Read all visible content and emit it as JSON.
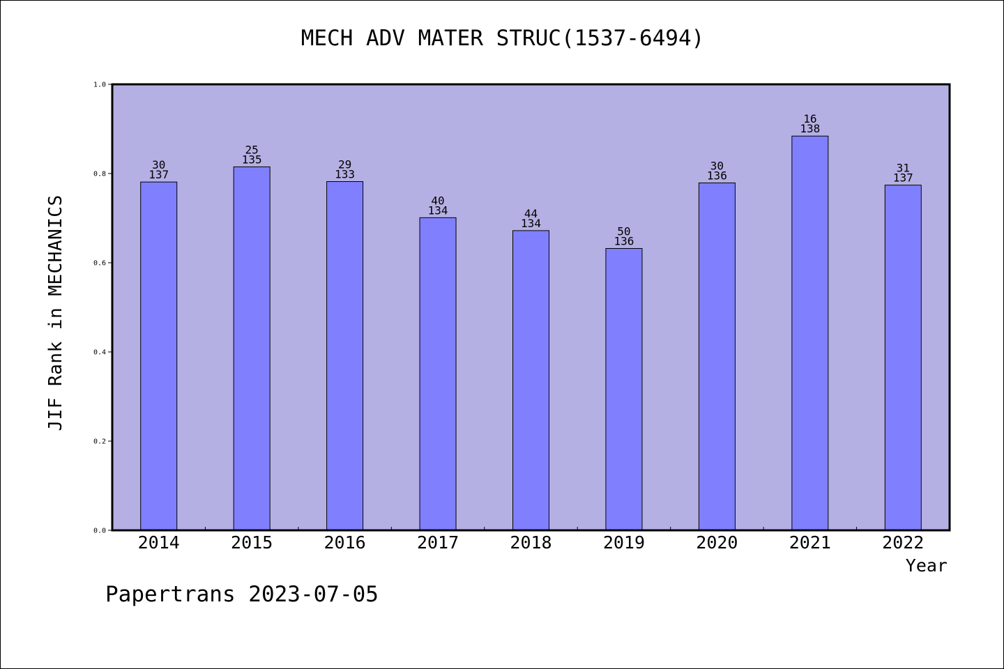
{
  "chart_data": {
    "type": "bar",
    "title": "MECH ADV MATER STRUC(1537-6494)",
    "xlabel": "Year",
    "ylabel": "JIF Rank in MECHANICS",
    "categories": [
      "2014",
      "2015",
      "2016",
      "2017",
      "2018",
      "2019",
      "2020",
      "2021",
      "2022"
    ],
    "values": [
      0.781,
      0.815,
      0.782,
      0.701,
      0.672,
      0.632,
      0.779,
      0.884,
      0.774
    ],
    "rank_labels": [
      "30",
      "25",
      "29",
      "40",
      "44",
      "50",
      "30",
      "16",
      "31"
    ],
    "total_labels": [
      "137",
      "135",
      "133",
      "134",
      "134",
      "136",
      "136",
      "138",
      "137"
    ],
    "ylim": [
      0,
      1.0
    ],
    "yticks": [
      "0.0",
      "0.2",
      "0.4",
      "0.6",
      "0.8",
      "1.0"
    ],
    "grid": false,
    "legend": "none",
    "colors": {
      "plot_background": "#b5b0e3",
      "bar_fill": "#8080ff",
      "bar_stroke": "#000000"
    }
  },
  "footer": {
    "note": "Papertrans 2023-07-05"
  }
}
